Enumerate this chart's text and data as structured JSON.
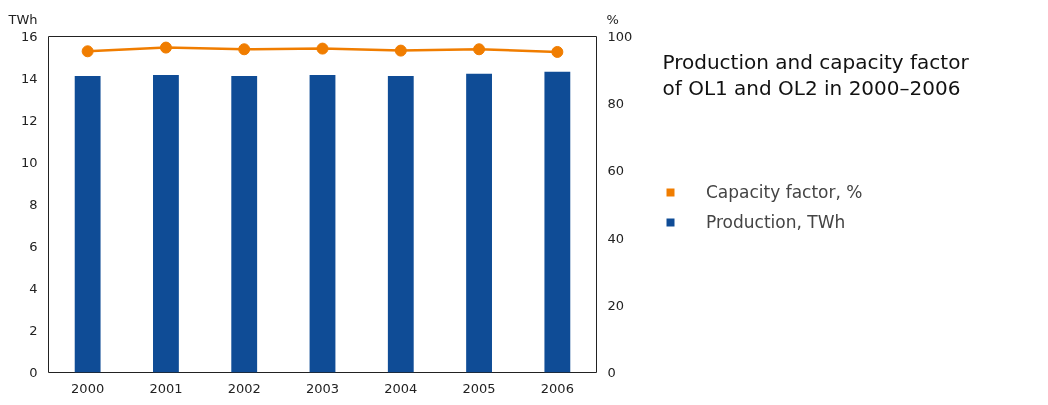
{
  "chart_data": {
    "type": "bar",
    "title": "Production and capacity factor of OL1 and OL2 in 2000–2006",
    "ylabel": "TWh",
    "y2label": "%",
    "categories": [
      "2000",
      "2001",
      "2002",
      "2003",
      "2004",
      "2005",
      "2006"
    ],
    "series": [
      {
        "name": "Capacity factor, %",
        "type": "line",
        "axis": "y2",
        "color": "#f07d00",
        "values": [
          95.6,
          96.7,
          96.2,
          96.4,
          95.8,
          96.2,
          95.4
        ]
      },
      {
        "name": "Production, TWh",
        "color": "#0f4c96",
        "values": [
          14.12,
          14.17,
          14.12,
          14.17,
          14.12,
          14.23,
          14.32
        ]
      }
    ],
    "ylim": [
      0,
      16
    ],
    "yticks": [
      0,
      2,
      4,
      6,
      8,
      10,
      12,
      14,
      16
    ],
    "y2lim": [
      0,
      100
    ],
    "y2ticks": [
      0,
      20,
      40,
      60,
      80,
      100
    ],
    "grid": false,
    "legend": "right",
    "marker": "circle",
    "line_style": "solid"
  }
}
